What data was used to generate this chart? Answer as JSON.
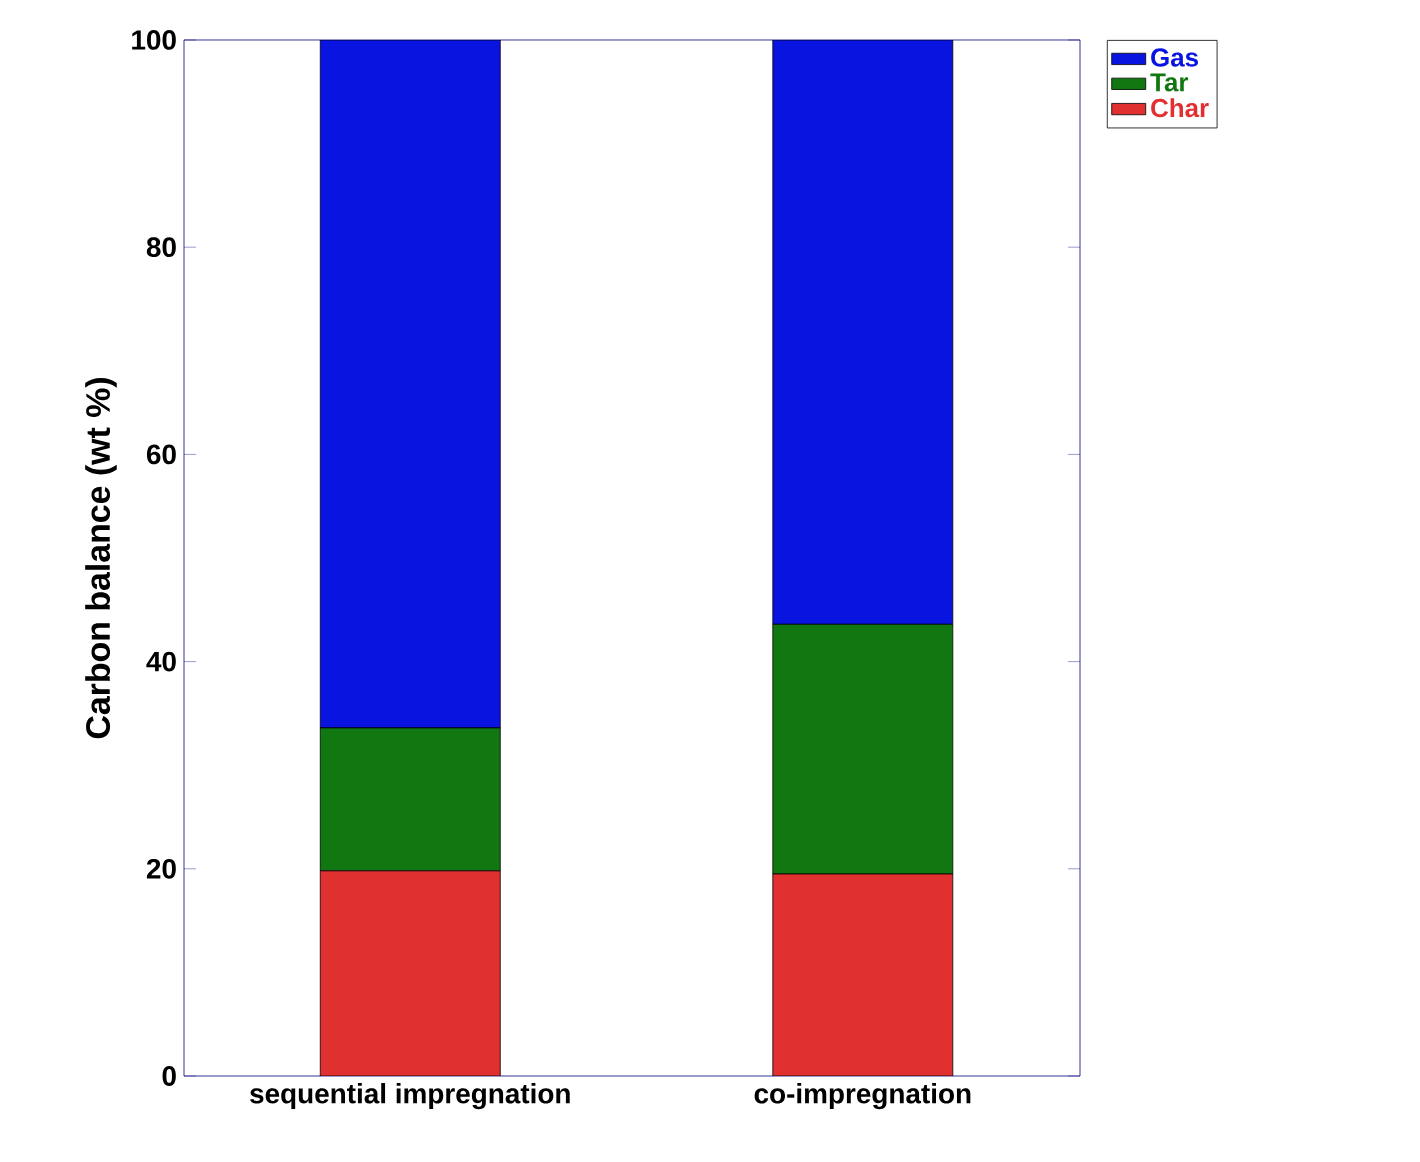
{
  "chart_data": {
    "type": "bar",
    "stacked": true,
    "ylabel": "Carbon balance (wt %)",
    "categories": [
      "sequential impregnation",
      "co-impregnation"
    ],
    "series": [
      {
        "name": "Char",
        "color": "#e03030",
        "values": [
          19.8,
          19.5
        ]
      },
      {
        "name": "Tar",
        "color": "#117711",
        "values": [
          13.8,
          24.1
        ]
      },
      {
        "name": "Gas",
        "color": "#0a14e0",
        "values": [
          66.4,
          56.4
        ]
      }
    ],
    "ylim": [
      0,
      100
    ],
    "yticks": [
      0,
      20,
      40,
      60,
      80,
      100
    ],
    "legend": "top right"
  }
}
